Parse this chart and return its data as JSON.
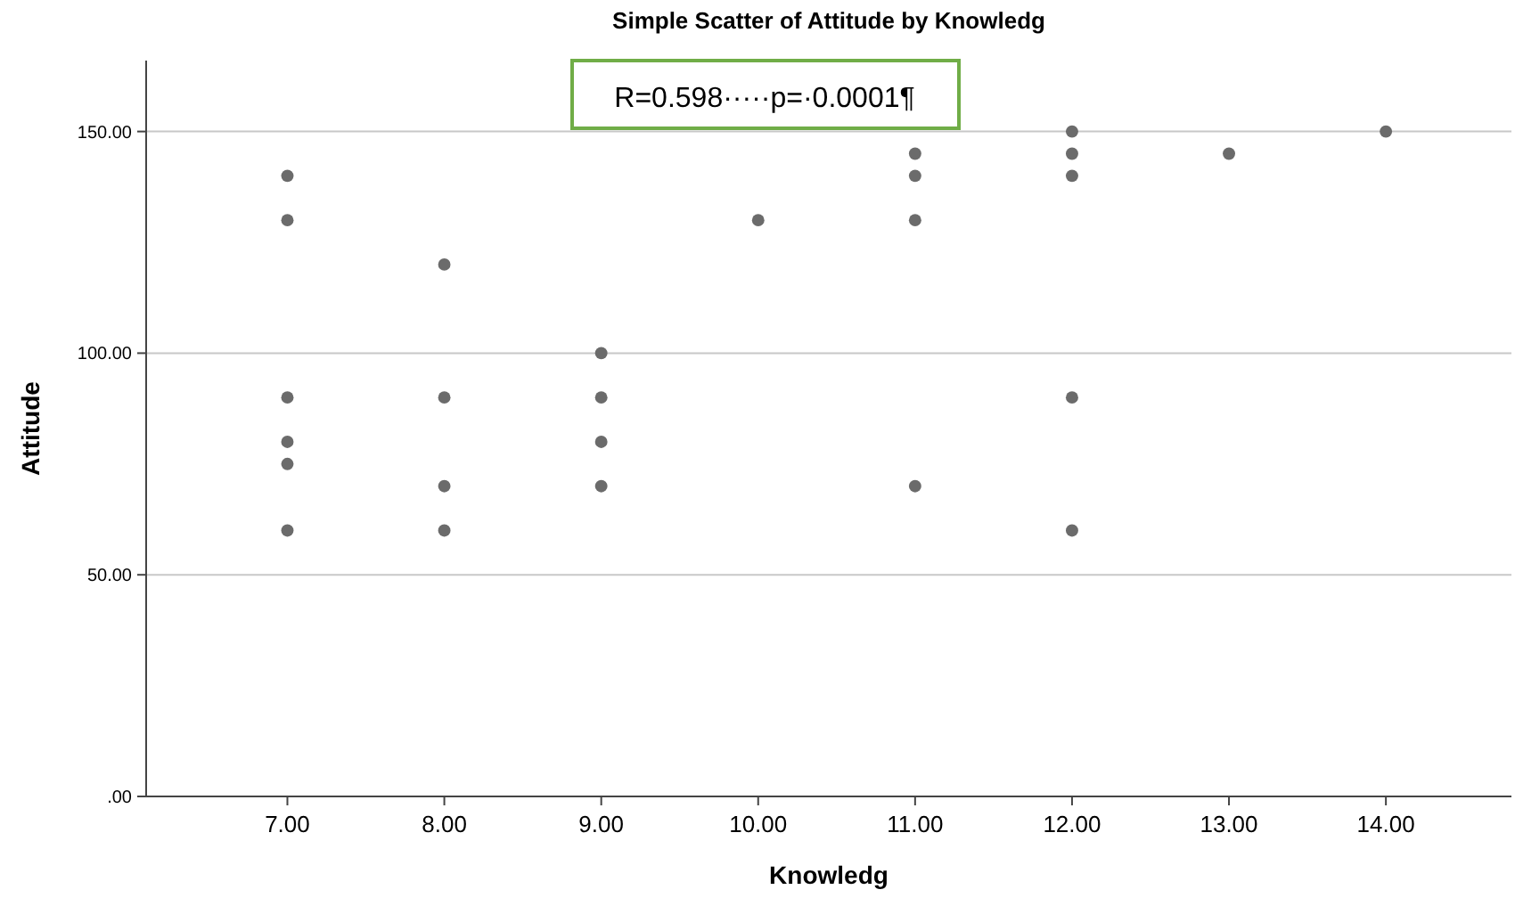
{
  "chart_data": {
    "type": "scatter",
    "title": "Simple Scatter of Attitude by Knowledg",
    "xlabel": "Knowledg",
    "ylabel": "Attitude",
    "annotations": [
      "R=0.598·····p=·0.0001¶"
    ],
    "series": [
      {
        "color": "#6b6b6b",
        "x": [
          7,
          7,
          7,
          7,
          7,
          7,
          8,
          8,
          8,
          8,
          9,
          9,
          9,
          9,
          10,
          11,
          11,
          11,
          11,
          12,
          12,
          12,
          12,
          12,
          13,
          14
        ],
        "values": [
          140,
          130,
          90,
          80,
          75,
          60,
          120,
          90,
          70,
          60,
          100,
          90,
          80,
          70,
          130,
          145,
          140,
          130,
          70,
          150,
          145,
          140,
          90,
          60,
          145,
          150
        ]
      }
    ],
    "xlim": [
      6.1,
      14.8
    ],
    "ylim": [
      0,
      166
    ],
    "xticks": [
      {
        "value": 7,
        "label": "7.00"
      },
      {
        "value": 8,
        "label": "8.00"
      },
      {
        "value": 9,
        "label": "9.00"
      },
      {
        "value": 10,
        "label": "10.00"
      },
      {
        "value": 11,
        "label": "11.00"
      },
      {
        "value": 12,
        "label": "12.00"
      },
      {
        "value": 13,
        "label": "13.00"
      },
      {
        "value": 14,
        "label": "14.00"
      }
    ],
    "yticks": [
      {
        "value": 0,
        "label": ".00"
      },
      {
        "value": 50,
        "label": "50.00"
      },
      {
        "value": 100,
        "label": "100.00"
      },
      {
        "value": 150,
        "label": "150.00"
      }
    ],
    "grid": "y",
    "marker": "circle"
  }
}
